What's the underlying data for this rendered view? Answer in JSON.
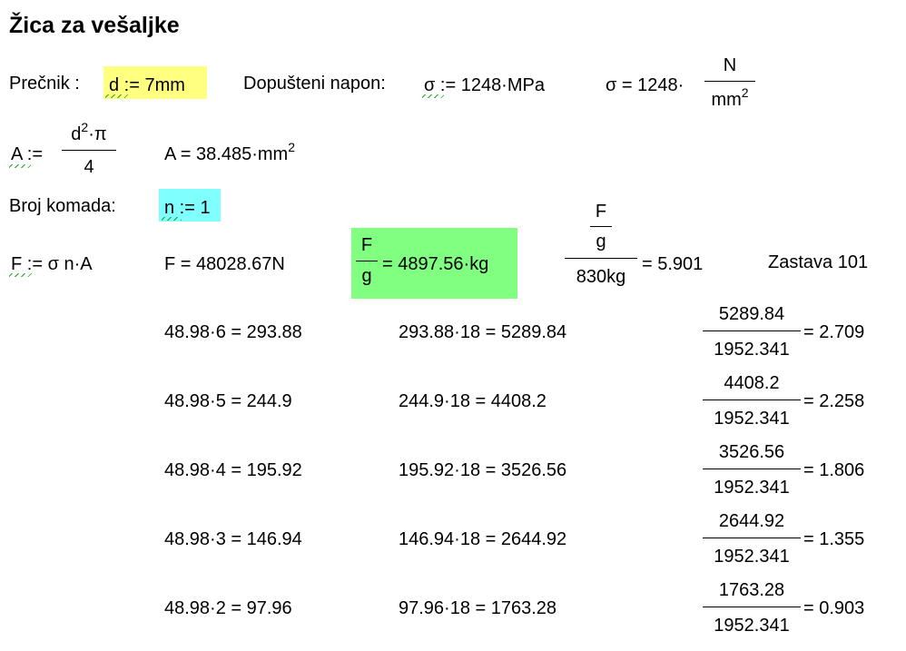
{
  "title": "Žica za vešaljke",
  "row1": {
    "diameter_label": "Prečnik :",
    "diameter_expr": "d := 7mm",
    "stress_label": "Dopušteni napon:",
    "sigma_def": "σ := 1248·MPa",
    "sigma_result_lhs": "σ = 1248·",
    "sigma_result_num": "N",
    "sigma_result_den": "mm",
    "sigma_result_den_exp": "2"
  },
  "row2": {
    "area_lhs": "A :=",
    "area_num": "d",
    "area_num_exp": "2",
    "area_num_tail": "·π",
    "area_den": "4",
    "area_result": "A = 38.485·mm",
    "area_result_exp": "2"
  },
  "row3": {
    "count_label": "Broj komada:",
    "count_expr": "n := 1"
  },
  "row4": {
    "force_def": "F := σ n·A",
    "force_result": "F = 48028.67N",
    "mass_num": "F",
    "mass_den": "g",
    "mass_result": "= 4897.56·kg",
    "ratio_num_top": "F",
    "ratio_num_bottom": "g",
    "ratio_den": "830kg",
    "ratio_result": "= 5.901",
    "vehicle": "Zastava 101"
  },
  "table": [
    {
      "expr1": "48.98·6 = 293.88",
      "expr2": "293.88·18 = 5289.84",
      "num": "5289.84",
      "den": "1952.341",
      "res": "= 2.709"
    },
    {
      "expr1": "48.98·5 = 244.9",
      "expr2": "244.9·18 = 4408.2",
      "num": "4408.2",
      "den": "1952.341",
      "res": "= 2.258"
    },
    {
      "expr1": "48.98·4 = 195.92",
      "expr2": "195.92·18 = 3526.56",
      "num": "3526.56",
      "den": "1952.341",
      "res": "= 1.806"
    },
    {
      "expr1": "48.98·3 = 146.94",
      "expr2": "146.94·18 = 2644.92",
      "num": "2644.92",
      "den": "1952.341",
      "res": "= 1.355"
    },
    {
      "expr1": "48.98·2 = 97.96",
      "expr2": "97.96·18 = 1763.28",
      "num": "1763.28",
      "den": "1952.341",
      "res": "= 0.903"
    }
  ]
}
